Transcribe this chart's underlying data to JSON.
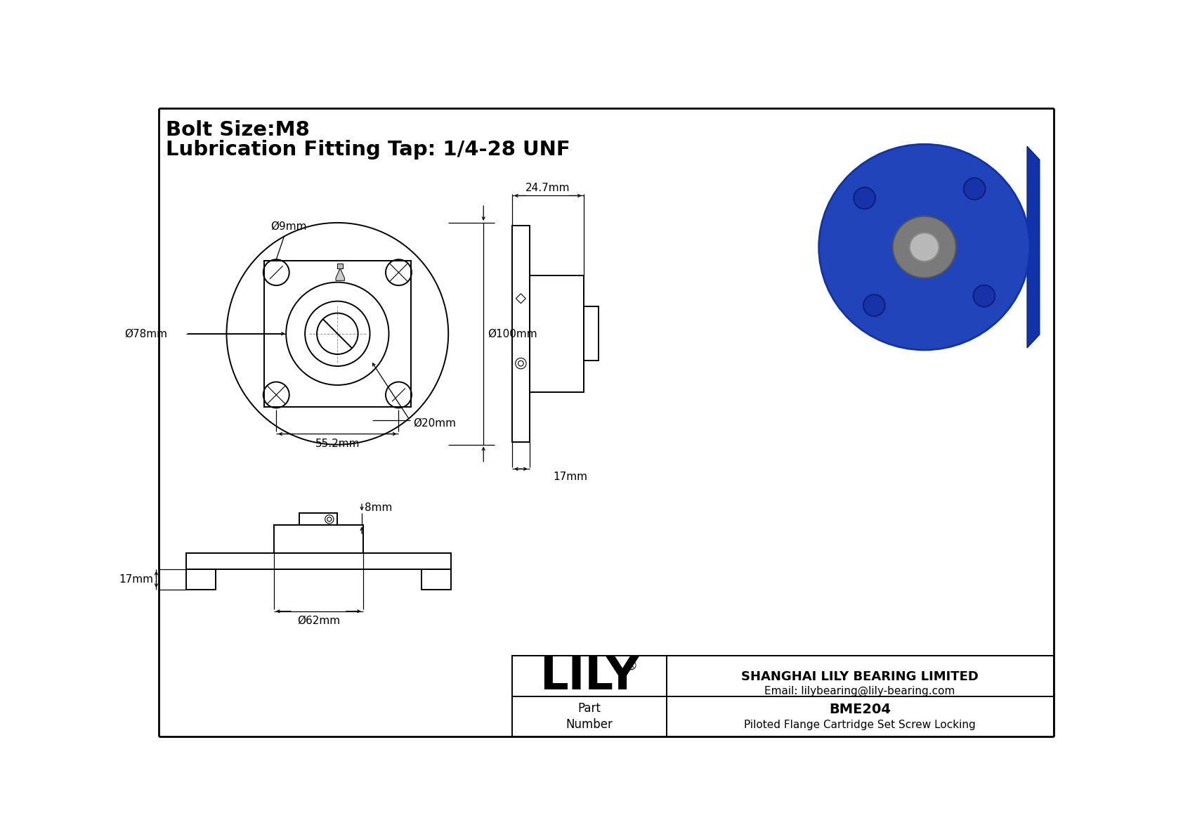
{
  "title_line1": "Bolt Size:M8",
  "title_line2": "Lubrication Fitting Tap: 1/4-28 UNF",
  "bg_color": "#ffffff",
  "line_color": "#000000",
  "company": "SHANGHAI LILY BEARING LIMITED",
  "email": "Email: lilybearing@lily-bearing.com",
  "part_label": "Part\nNumber",
  "part_number": "BME204",
  "part_desc": "Piloted Flange Cartridge Set Screw Locking",
  "dims": {
    "d9": "Ø9mm",
    "d78": "Ø78mm",
    "d100": "Ø100mm",
    "d20": "Ø20mm",
    "d62": "Ø62mm",
    "w55": "55.2mm",
    "w24": "24.7mm",
    "h17_side": "17mm",
    "h17_bot": "17mm",
    "h8": "8mm"
  }
}
